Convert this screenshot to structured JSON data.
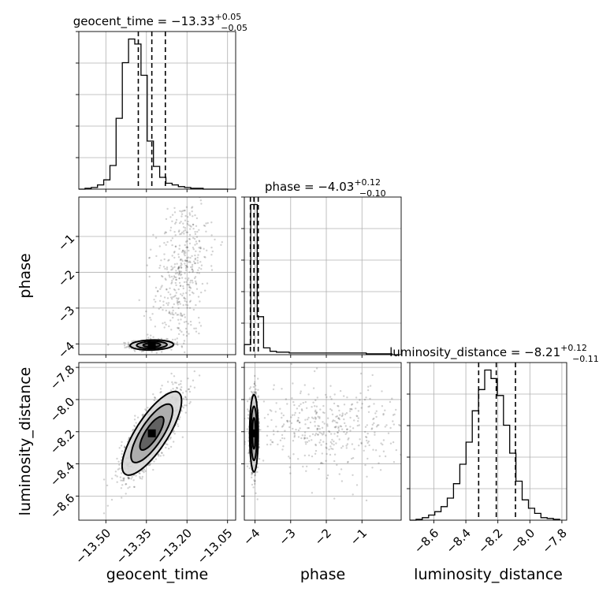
{
  "figure": {
    "colors": {
      "axes": "#000000",
      "grid": "#b0b0b0",
      "hist": "#000000",
      "scatter": "#000000",
      "background": "#ffffff"
    }
  },
  "chart_data": {
    "type": "corner",
    "grid": true,
    "parameters": [
      {
        "name": "geocent_time",
        "xlabel": "geocent_time",
        "range": [
          -13.6,
          -13.02
        ],
        "ticks": [
          -13.5,
          -13.35,
          -13.2,
          -13.05
        ],
        "tick_labels": [
          "−13.50",
          "−13.35",
          "−13.20",
          "−13.05"
        ],
        "title": {
          "base": "geocent_time = −13.33",
          "plus": "+0.05",
          "minus": "−0.05"
        },
        "quantiles": [
          -13.38,
          -13.33,
          -13.28
        ],
        "hist": {
          "bins": [
            -13.6,
            -13.577,
            -13.554,
            -13.531,
            -13.508,
            -13.485,
            -13.462,
            -13.439,
            -13.416,
            -13.393,
            -13.37,
            -13.347,
            -13.324,
            -13.301,
            -13.278,
            -13.255,
            -13.232,
            -13.209,
            -13.186,
            -13.163,
            -13.14,
            -13.117,
            -13.094,
            -13.071,
            -13.048
          ],
          "counts": [
            0,
            1,
            2,
            5,
            11,
            28,
            84,
            150,
            178,
            172,
            135,
            57,
            27,
            14,
            7,
            5,
            3,
            2,
            1,
            1,
            0,
            0,
            0,
            0
          ]
        }
      },
      {
        "name": "phase",
        "xlabel": "phase",
        "ylabel": "phase",
        "range": [
          -4.3,
          0.1
        ],
        "ticks": [
          -4,
          -3,
          -2,
          -1
        ],
        "tick_labels": [
          "−4",
          "−3",
          "−2",
          "−1"
        ],
        "title": {
          "base": "phase = −4.03",
          "plus": "+0.12",
          "minus": "−0.10"
        },
        "quantiles": [
          -4.13,
          -4.03,
          -3.91
        ],
        "hist": {
          "bins": [
            -4.3,
            -4.12,
            -3.94,
            -3.76,
            -3.58,
            -3.4,
            -3.22,
            -3.04,
            -2.86,
            -2.68,
            -2.5,
            -2.32,
            -2.14,
            -1.96,
            -1.78,
            -1.6,
            -1.42,
            -1.24,
            -1.06,
            -0.88,
            -0.7,
            -0.52,
            -0.34,
            -0.16,
            0.02
          ],
          "counts": [
            12,
            178,
            45,
            8,
            4,
            3,
            3,
            2,
            2,
            2,
            2,
            2,
            2,
            2,
            2,
            2,
            2,
            2,
            2,
            1,
            1,
            1,
            1,
            0
          ]
        }
      },
      {
        "name": "luminosity_distance",
        "xlabel": "luminosity_distance",
        "ylabel": "luminosity_distance",
        "range": [
          -8.75,
          -7.77
        ],
        "ticks": [
          -8.6,
          -8.4,
          -8.2,
          -8.0,
          -7.8
        ],
        "tick_labels": [
          "−8.6",
          "−8.4",
          "−8.2",
          "−8.0",
          "−7.8"
        ],
        "title": {
          "base": "luminosity_distance = −8.21",
          "plus": "+0.12",
          "minus": "−0.11"
        },
        "quantiles": [
          -8.32,
          -8.21,
          -8.09
        ],
        "hist": {
          "bins": [
            -8.75,
            -8.711,
            -8.672,
            -8.633,
            -8.594,
            -8.555,
            -8.516,
            -8.477,
            -8.438,
            -8.399,
            -8.36,
            -8.321,
            -8.282,
            -8.243,
            -8.204,
            -8.165,
            -8.126,
            -8.087,
            -8.048,
            -8.009,
            -7.97,
            -7.931,
            -7.892,
            -7.853,
            -7.814
          ],
          "counts": [
            0,
            1,
            3,
            6,
            10,
            16,
            26,
            43,
            66,
            92,
            129,
            154,
            177,
            167,
            147,
            112,
            79,
            46,
            24,
            14,
            8,
            3,
            2,
            1
          ]
        }
      }
    ],
    "pairs": [
      {
        "x": "geocent_time",
        "y": "phase",
        "blobs": [
          {
            "cx": -13.33,
            "cy": -4.03,
            "sx": 0.04,
            "sy": 0.07,
            "rho": 0.1,
            "n": 560
          },
          {
            "cx": -13.22,
            "cy": -2.0,
            "sx": 0.05,
            "sy": 1.1,
            "rho": 0.3,
            "n": 450
          }
        ]
      },
      {
        "x": "geocent_time",
        "y": "luminosity_distance",
        "blobs": [
          {
            "cx": -13.33,
            "cy": -8.21,
            "sx": 0.055,
            "sy": 0.13,
            "rho": 0.78,
            "n": 1400
          }
        ]
      },
      {
        "x": "phase",
        "y": "luminosity_distance",
        "blobs": [
          {
            "cx": -4.03,
            "cy": -8.21,
            "sx": 0.06,
            "sy": 0.12,
            "rho": 0.0,
            "n": 700
          },
          {
            "cx": -2.0,
            "cy": -8.17,
            "sx": 1.1,
            "sy": 0.13,
            "rho": 0.0,
            "n": 420
          }
        ]
      }
    ]
  }
}
